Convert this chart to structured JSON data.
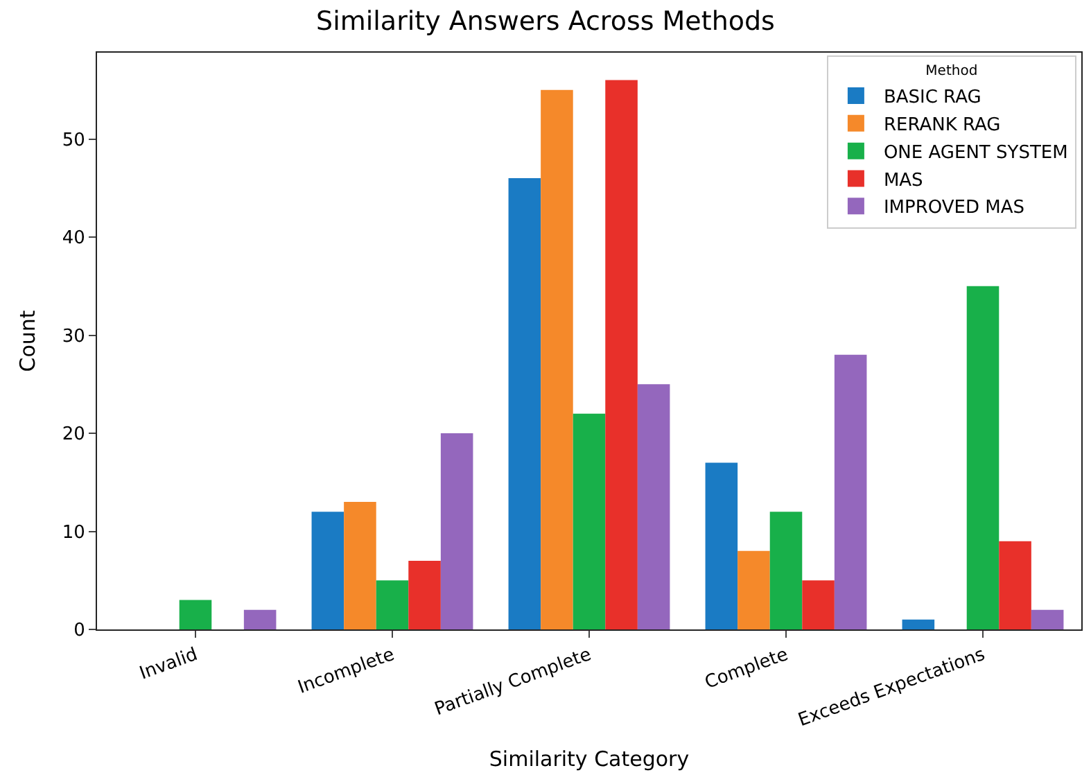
{
  "chart_data": {
    "type": "bar",
    "title": "Similarity Answers Across Methods",
    "xlabel": "Similarity Category",
    "ylabel": "Count",
    "legend_title": "Method",
    "categories": [
      "Invalid",
      "Incomplete",
      "Partially Complete",
      "Complete",
      "Exceeds Expectations"
    ],
    "series": [
      {
        "name": "BASIC RAG",
        "color": "#1a7bc4",
        "values": [
          0,
          12,
          46,
          17,
          1
        ]
      },
      {
        "name": "RERANK RAG",
        "color": "#f5892a",
        "values": [
          0,
          13,
          55,
          8,
          0
        ]
      },
      {
        "name": "ONE AGENT SYSTEM",
        "color": "#18b04a",
        "values": [
          3,
          5,
          22,
          12,
          35
        ]
      },
      {
        "name": "MAS",
        "color": "#e8302a",
        "values": [
          0,
          7,
          56,
          5,
          9
        ]
      },
      {
        "name": "IMPROVED MAS",
        "color": "#9467bd",
        "values": [
          2,
          20,
          25,
          28,
          2
        ]
      }
    ],
    "ylim": [
      0,
      58.8
    ],
    "yticks": [
      0,
      10,
      20,
      30,
      40,
      50
    ],
    "grid": false,
    "legend": "top right"
  }
}
